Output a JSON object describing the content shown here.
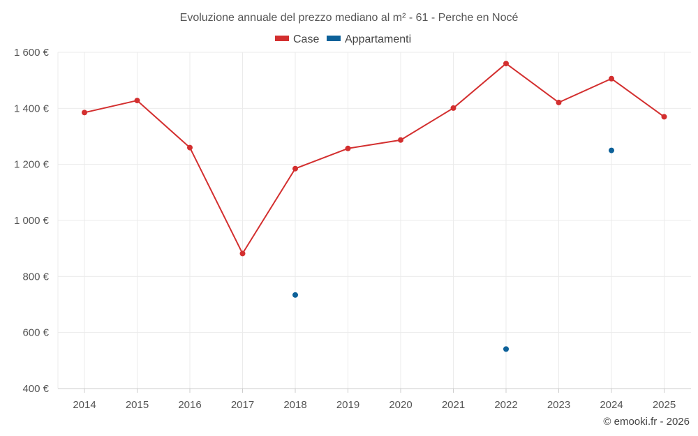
{
  "chart_data": {
    "type": "line",
    "title": "Evoluzione annuale del prezzo mediano al m² - 61 - Perche en Nocé",
    "xlabel": "",
    "ylabel": "",
    "categories": [
      "2014",
      "2015",
      "2016",
      "2017",
      "2018",
      "2019",
      "2020",
      "2021",
      "2022",
      "2023",
      "2024",
      "2025"
    ],
    "ylim": [
      400,
      1600
    ],
    "yticks": [
      400,
      600,
      800,
      1000,
      1200,
      1400,
      1600
    ],
    "ytick_labels": [
      "400 €",
      "600 €",
      "800 €",
      "1 000 €",
      "1 200 €",
      "1 400 €",
      "1 600 €"
    ],
    "legend_position": "top-center",
    "series": [
      {
        "name": "Case",
        "color": "#d32f2f",
        "style": "line+markers",
        "values": [
          1385,
          1428,
          1260,
          882,
          1185,
          1257,
          1287,
          1401,
          1560,
          1421,
          1506,
          1370
        ]
      },
      {
        "name": "Appartamenti",
        "color": "#0d6199",
        "style": "markers",
        "values": [
          null,
          null,
          null,
          null,
          734,
          null,
          null,
          null,
          541,
          null,
          1250,
          null
        ]
      }
    ],
    "credit": "© emooki.fr - 2026"
  }
}
